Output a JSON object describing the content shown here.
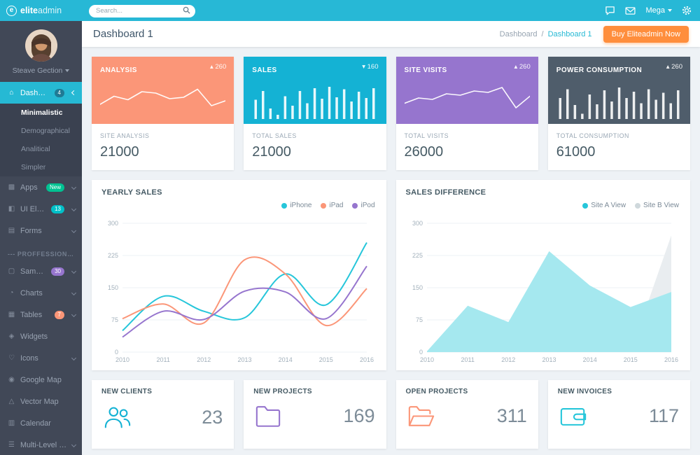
{
  "topbar": {
    "logo_letter": "e",
    "brand_bold": "elite",
    "brand_light": "admin",
    "search_placeholder": "Search...",
    "mega_label": "Mega",
    "accent_color": "#27b8d6"
  },
  "sidebar": {
    "user": {
      "name": "Steave Gection"
    },
    "items": [
      {
        "label": "Dashboard",
        "icon": "dashboard",
        "type": "item",
        "active": true,
        "badge": "4",
        "badge_color": "#1f7a95",
        "chevron": true
      },
      {
        "label": "Minimalistic",
        "type": "sub",
        "active": true
      },
      {
        "label": "Demographical",
        "type": "sub"
      },
      {
        "label": "Analitical",
        "type": "sub"
      },
      {
        "label": "Simpler",
        "type": "sub"
      },
      {
        "label": "Apps",
        "icon": "apps",
        "type": "item",
        "badge": "New",
        "badge_color": "#00c292",
        "chevron": true
      },
      {
        "label": "UI Elements",
        "icon": "ui-elements",
        "type": "item",
        "badge": "13",
        "badge_color": "#01c0c8",
        "chevron": true
      },
      {
        "label": "Forms",
        "icon": "forms",
        "type": "item",
        "chevron": true
      },
      {
        "label": "--- PROFFESSIONAL",
        "type": "section"
      },
      {
        "label": "Sample Pages",
        "icon": "sample-pages",
        "type": "item",
        "badge": "30",
        "badge_color": "#9675ce",
        "chevron": true
      },
      {
        "label": "Charts",
        "icon": "charts",
        "type": "item",
        "chevron": true
      },
      {
        "label": "Tables",
        "icon": "tables",
        "type": "item",
        "badge": "7",
        "badge_color": "#fb9678",
        "chevron": true
      },
      {
        "label": "Widgets",
        "icon": "widgets",
        "type": "item"
      },
      {
        "label": "Icons",
        "icon": "icons",
        "type": "item",
        "chevron": true
      },
      {
        "label": "Google Map",
        "icon": "google-map",
        "type": "item"
      },
      {
        "label": "Vector Map",
        "icon": "vector-map",
        "type": "item"
      },
      {
        "label": "Calendar",
        "icon": "calendar",
        "type": "item"
      },
      {
        "label": "Multi-Level Dropdown",
        "icon": "multi-level",
        "type": "item",
        "chevron": true
      }
    ]
  },
  "header": {
    "title": "Dashboard 1",
    "breadcrumb": {
      "root": "Dashboard",
      "sep": "/",
      "current": "Dashboard 1"
    },
    "buy_button": "Buy Eliteadmin Now"
  },
  "stat_cards": [
    {
      "title": "ANALYSIS",
      "delta": "▴ 260",
      "label": "SITE ANALYSIS",
      "value": "21000",
      "color": "#fb9678",
      "spark_type": "line",
      "spark": [
        42,
        65,
        55,
        78,
        74,
        58,
        62,
        85,
        38,
        52
      ]
    },
    {
      "title": "SALES",
      "delta": "▾ 160",
      "label": "TOTAL SALES",
      "value": "21000",
      "color": "#14b2d4",
      "spark_type": "bar",
      "spark": [
        55,
        80,
        30,
        12,
        65,
        38,
        80,
        45,
        88,
        58,
        92,
        62,
        85,
        50,
        78,
        60,
        88
      ]
    },
    {
      "title": "SITE VISITS",
      "delta": "▴ 260",
      "label": "TOTAL VISITS",
      "value": "26000",
      "color": "#9675ce",
      "spark_type": "line",
      "spark": [
        45,
        60,
        56,
        72,
        68,
        80,
        76,
        90,
        32,
        65
      ]
    },
    {
      "title": "POWER CONSUMPTION",
      "delta": "▴ 260",
      "label": "TOTAL CONSUMPTION",
      "value": "61000",
      "color": "#4f5d6b",
      "spark_type": "bar",
      "spark": [
        60,
        85,
        40,
        15,
        70,
        42,
        82,
        50,
        90,
        60,
        78,
        45,
        85,
        55,
        75,
        45,
        82
      ]
    }
  ],
  "chart_data": [
    {
      "type": "line",
      "title": "YEARLY SALES",
      "x": [
        "2010",
        "2011",
        "2012",
        "2013",
        "2014",
        "2015",
        "2016"
      ],
      "ylim": [
        0,
        300
      ],
      "yticks": [
        0,
        75,
        150,
        225,
        300
      ],
      "grid": true,
      "legend_position": "top-right",
      "series": [
        {
          "name": "iPhone",
          "color": "#26c6da",
          "values": [
            50,
            130,
            95,
            80,
            182,
            110,
            255
          ]
        },
        {
          "name": "iPad",
          "color": "#fb9678",
          "values": [
            78,
            112,
            68,
            215,
            182,
            62,
            148
          ]
        },
        {
          "name": "iPod",
          "color": "#9675ce",
          "values": [
            35,
            95,
            76,
            142,
            140,
            78,
            200
          ]
        }
      ]
    },
    {
      "type": "area",
      "title": "SALES DIFFERENCE",
      "x": [
        "2010",
        "2011",
        "2012",
        "2013",
        "2014",
        "2015",
        "2016"
      ],
      "ylim": [
        0,
        300
      ],
      "yticks": [
        0,
        75,
        150,
        225,
        300
      ],
      "grid": true,
      "legend_position": "top-right",
      "series": [
        {
          "name": "Site A View",
          "color": "#26c6da",
          "fill": "#a5e8ef",
          "values": [
            2,
            108,
            70,
            235,
            155,
            105,
            140
          ]
        },
        {
          "name": "Site B View",
          "color": "#cfd8dc",
          "fill": "#e9edf0",
          "values": [
            0,
            20,
            10,
            45,
            25,
            0,
            272
          ]
        }
      ]
    }
  ],
  "bottom_cards": [
    {
      "title": "NEW CLIENTS",
      "value": "23",
      "icon": "users",
      "color": "#14b2d4"
    },
    {
      "title": "NEW PROJECTS",
      "value": "169",
      "icon": "folder",
      "color": "#9675ce"
    },
    {
      "title": "OPEN PROJECTS",
      "value": "311",
      "icon": "folder-open",
      "color": "#fb9678"
    },
    {
      "title": "NEW INVOICES",
      "value": "117",
      "icon": "wallet",
      "color": "#26c6da"
    }
  ]
}
